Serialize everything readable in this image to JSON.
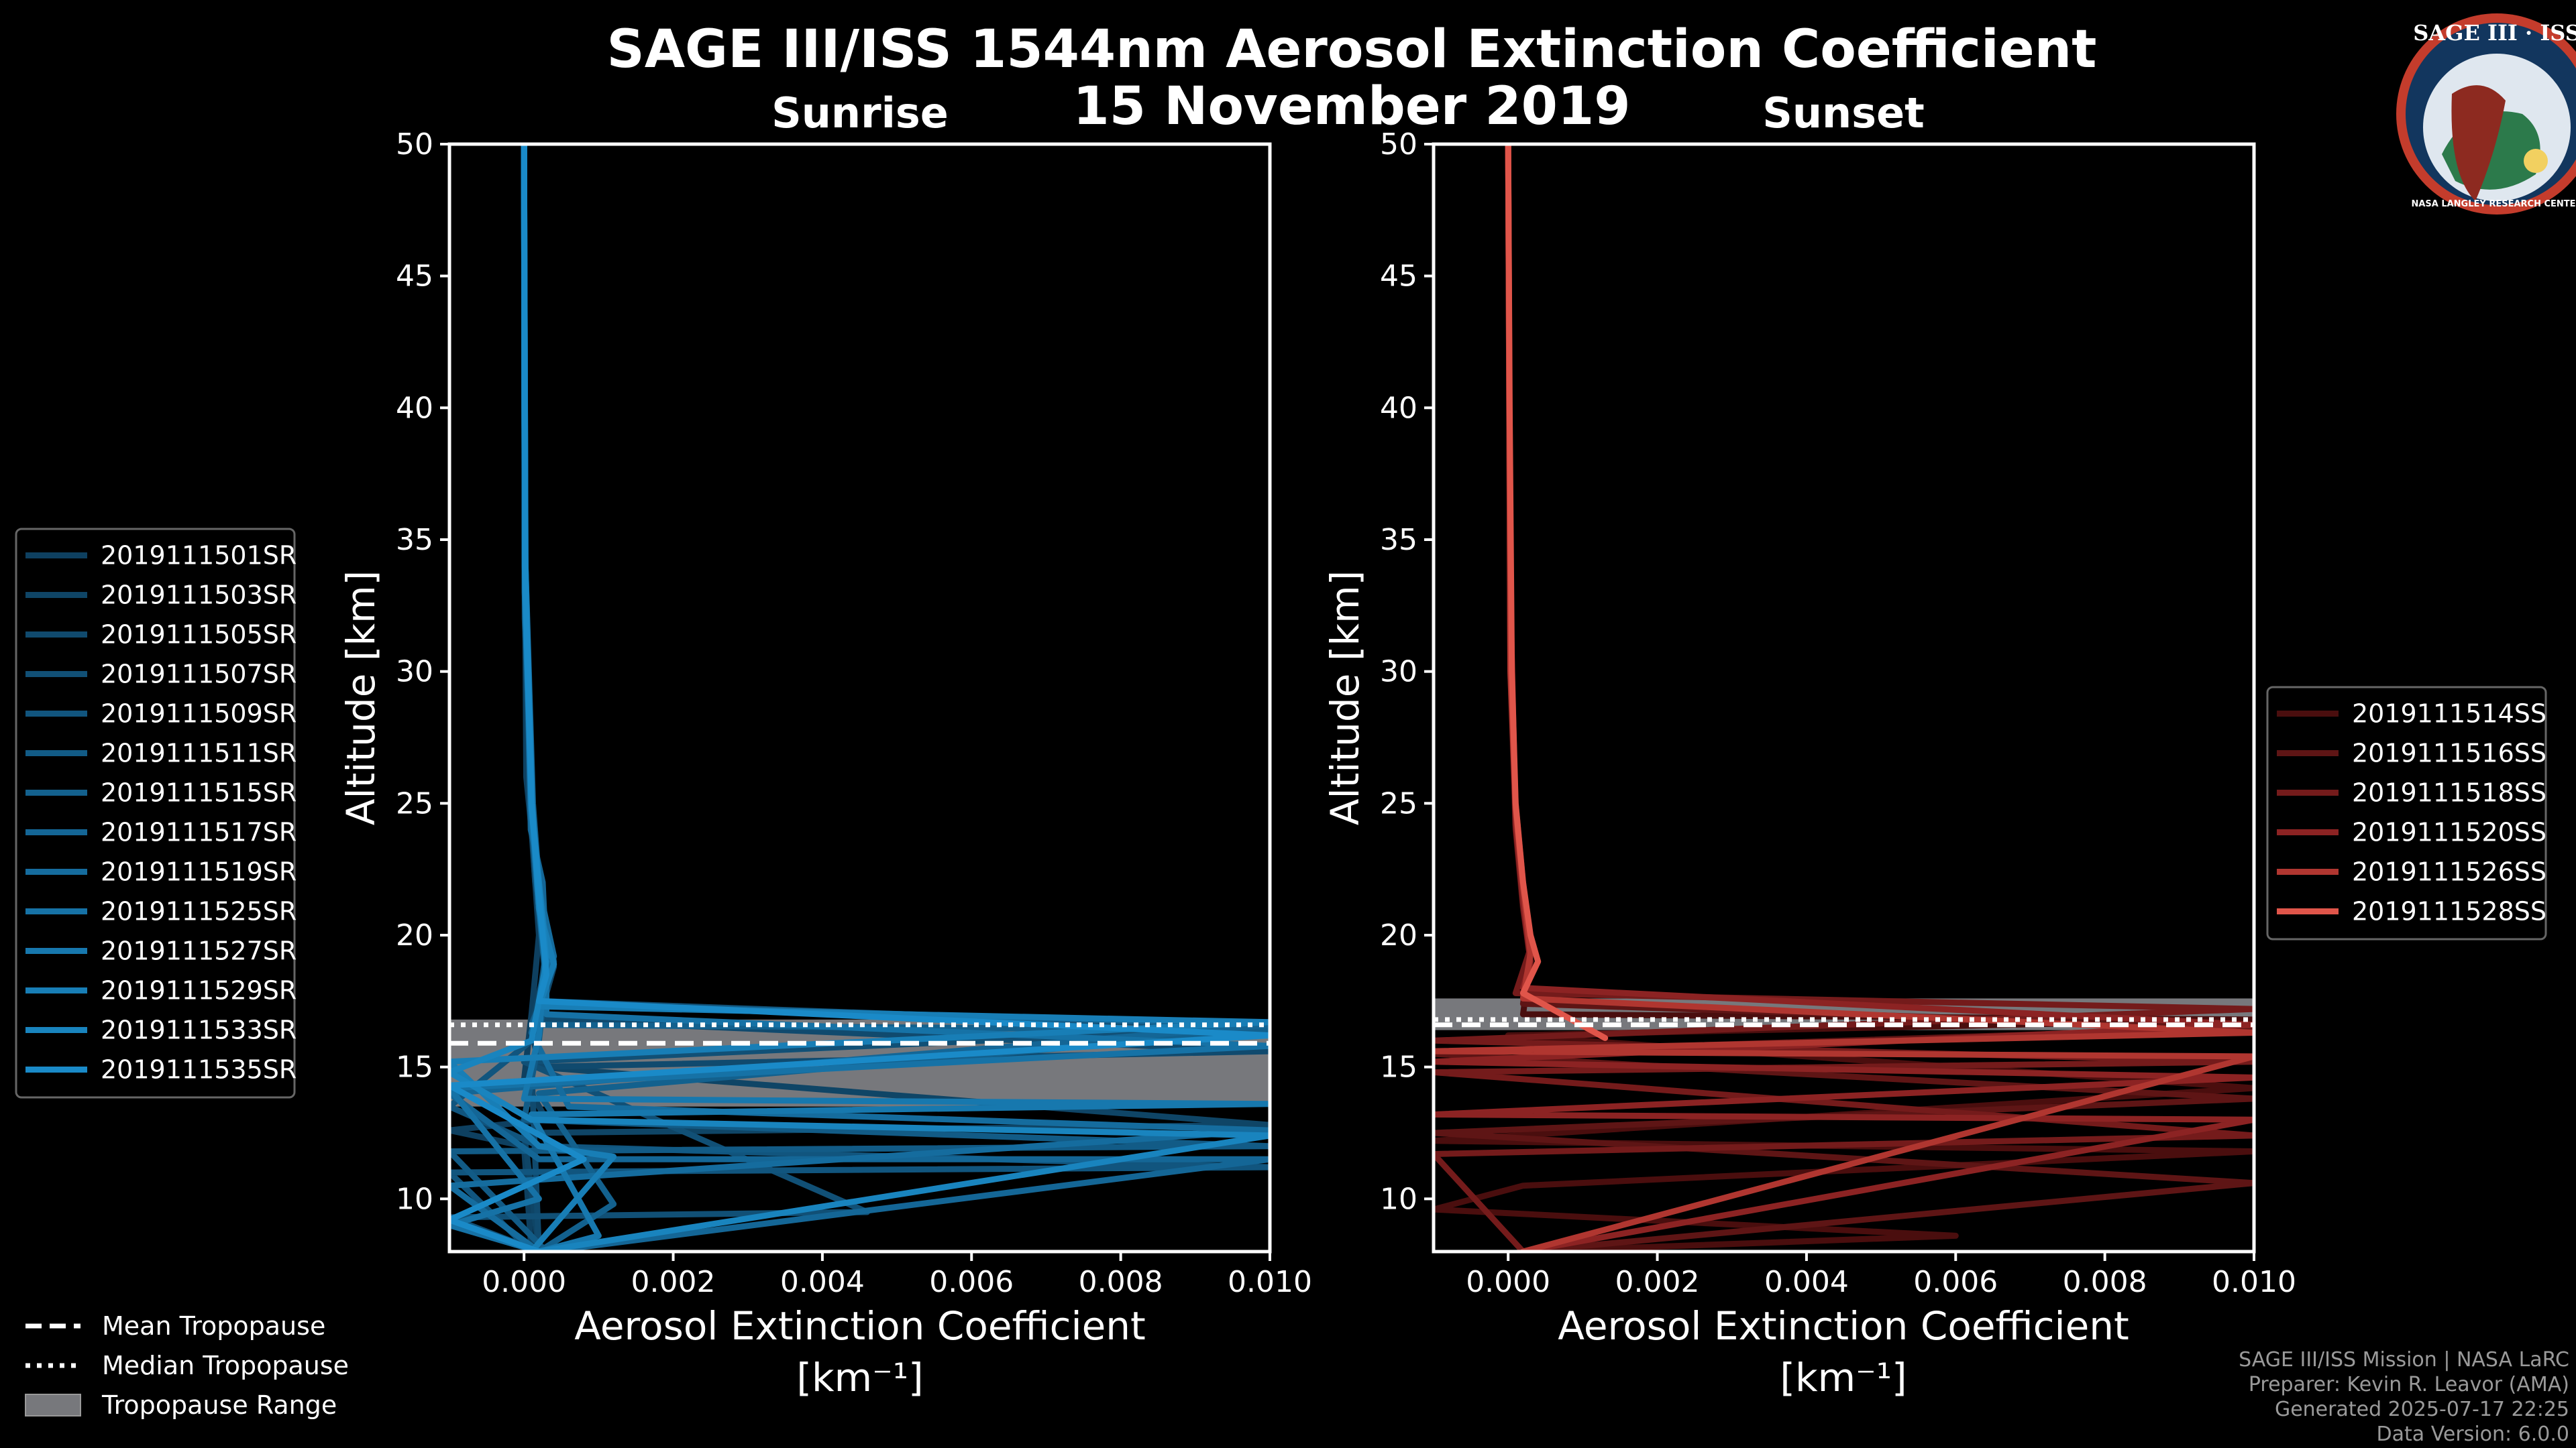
{
  "title_line1": "SAGE III/ISS 1544nm Aerosol Extinction Coefficient",
  "title_line2": "15 November 2019",
  "logo": {
    "text": "SAGE III · ISS",
    "ring_text": "NASA LANGLEY RESEARCH CENTER"
  },
  "credits": {
    "line1": "SAGE III/ISS Mission | NASA LaRC",
    "line2": "Preparer: Kevin R. Leavor (AMA)",
    "line3": "Generated 2025-07-17 22:25",
    "line4": "Data Version: 6.0.0"
  },
  "tropopause_legend": [
    {
      "label": "Mean Tropopause",
      "style": "dashed"
    },
    {
      "label": "Median Tropopause",
      "style": "dotted"
    },
    {
      "label": "Tropopause Range",
      "style": "fill"
    }
  ],
  "chart_data": [
    {
      "type": "line",
      "title": "Sunrise",
      "xlabel": "Aerosol Extinction Coefficient",
      "xunit": "[km⁻¹]",
      "ylabel": "Altitude [km]",
      "xlim": [
        -0.001,
        0.01
      ],
      "ylim": [
        8,
        50
      ],
      "xticks": [
        "0.000",
        "0.002",
        "0.004",
        "0.006",
        "0.008",
        "0.010"
      ],
      "yticks": [
        "10",
        "15",
        "20",
        "25",
        "30",
        "35",
        "40",
        "45",
        "50"
      ],
      "tropopause": {
        "mean": 15.9,
        "median": 16.6,
        "range": [
          13.5,
          16.8
        ]
      },
      "series": [
        {
          "name": "2019111501SR",
          "color": "#0e4060",
          "points": [
            [
              0.0,
              50
            ],
            [
              1e-05,
              35
            ],
            [
              3e-05,
              26
            ],
            [
              0.0001,
              24
            ],
            [
              0.0002,
              20
            ],
            [
              0.0001,
              17
            ],
            [
              0.0,
              14.5
            ],
            [
              0.0003,
              13
            ],
            [
              -0.001,
              12.6
            ],
            [
              0.0,
              12
            ],
            [
              0.0001,
              8
            ]
          ]
        },
        {
          "name": "2019111503SR",
          "color": "#0f4566",
          "points": [
            [
              0.0,
              50
            ],
            [
              2e-05,
              33
            ],
            [
              0.0001,
              25
            ],
            [
              0.0002,
              22
            ],
            [
              0.0003,
              19
            ],
            [
              0.0001,
              16.5
            ],
            [
              0.0002,
              15
            ],
            [
              0.01,
              12.8
            ],
            [
              0.0,
              12.5
            ],
            [
              0.0002,
              8
            ]
          ]
        },
        {
          "name": "2019111505SR",
          "color": "#104a6e",
          "points": [
            [
              0.0,
              50
            ],
            [
              1e-05,
              34
            ],
            [
              8e-05,
              25
            ],
            [
              0.00015,
              22
            ],
            [
              0.0004,
              18.8
            ],
            [
              0.0002,
              16.8
            ],
            [
              0.01,
              15.6
            ],
            [
              0.0001,
              15
            ],
            [
              0.0002,
              8
            ]
          ]
        },
        {
          "name": "2019111507SR",
          "color": "#115076",
          "points": [
            [
              0.0,
              50
            ],
            [
              1e-05,
              32
            ],
            [
              0.0001,
              24.5
            ],
            [
              0.0002,
              21
            ],
            [
              0.0003,
              19.5
            ],
            [
              0.0002,
              17.5
            ],
            [
              0.01,
              16.5
            ],
            [
              0.0,
              15.2
            ],
            [
              0.0046,
              9.5
            ],
            [
              -0.001,
              9.3
            ],
            [
              0.0002,
              8
            ]
          ]
        },
        {
          "name": "2019111509SR",
          "color": "#11557e",
          "points": [
            [
              0.0,
              50
            ],
            [
              1e-05,
              35
            ],
            [
              0.0001,
              25
            ],
            [
              0.0002,
              21.5
            ],
            [
              0.0004,
              19
            ],
            [
              0.0001,
              16
            ],
            [
              -0.001,
              13.5
            ],
            [
              0.0002,
              12
            ],
            [
              0.01,
              11.2
            ],
            [
              -0.001,
              11
            ],
            [
              0.0001,
              8
            ]
          ]
        },
        {
          "name": "2019111511SR",
          "color": "#125b86",
          "points": [
            [
              0.0,
              50
            ],
            [
              2e-05,
              34
            ],
            [
              0.00012,
              25
            ],
            [
              0.0002,
              22
            ],
            [
              0.0003,
              18.5
            ],
            [
              0.0002,
              16
            ],
            [
              0.0,
              13
            ],
            [
              0.01,
              12.0
            ],
            [
              -0.001,
              11.8
            ],
            [
              0.0003,
              8
            ]
          ]
        },
        {
          "name": "2019111515SR",
          "color": "#13618e",
          "points": [
            [
              0.0,
              50
            ],
            [
              1e-05,
              33
            ],
            [
              0.0001,
              24.8
            ],
            [
              0.0002,
              21
            ],
            [
              0.0003,
              18
            ],
            [
              0.0001,
              16.6
            ],
            [
              0.01,
              16.4
            ],
            [
              0.0002,
              14
            ],
            [
              0.0012,
              9.8
            ],
            [
              0.0002,
              8
            ]
          ]
        },
        {
          "name": "2019111517SR",
          "color": "#146696",
          "points": [
            [
              0.0,
              50
            ],
            [
              1e-05,
              35
            ],
            [
              9e-05,
              24
            ],
            [
              0.00025,
              22
            ],
            [
              0.0003,
              19
            ],
            [
              0.0002,
              17.4
            ],
            [
              0.01,
              16.6
            ],
            [
              -0.001,
              14
            ],
            [
              0.0002,
              11.5
            ],
            [
              0.01,
              11.5
            ],
            [
              0.0003,
              8
            ]
          ]
        },
        {
          "name": "2019111519SR",
          "color": "#156c9e",
          "points": [
            [
              0.0,
              50
            ],
            [
              2e-05,
              32
            ],
            [
              0.0001,
              25
            ],
            [
              0.0002,
              21.8
            ],
            [
              0.0004,
              19.2
            ],
            [
              0.0001,
              16.3
            ],
            [
              0.0006,
              13.5
            ],
            [
              0.01,
              12.6
            ],
            [
              -0.001,
              10.5
            ],
            [
              0.0002,
              8
            ]
          ]
        },
        {
          "name": "2019111525SR",
          "color": "#1672a6",
          "points": [
            [
              0.0,
              50
            ],
            [
              1e-05,
              34
            ],
            [
              0.0001,
              24.5
            ],
            [
              0.0002,
              21
            ],
            [
              0.0003,
              18.7
            ],
            [
              0.0003,
              17
            ],
            [
              0.01,
              15.8
            ],
            [
              -0.001,
              14.2
            ],
            [
              0.0002,
              10
            ],
            [
              -0.001,
              9.0
            ],
            [
              0.0002,
              8
            ]
          ]
        },
        {
          "name": "2019111527SR",
          "color": "#1778ae",
          "points": [
            [
              0.0,
              50
            ],
            [
              1e-05,
              33
            ],
            [
              0.0001,
              25
            ],
            [
              0.0002,
              22
            ],
            [
              0.0003,
              19.5
            ],
            [
              0.0002,
              16.2
            ],
            [
              0.0,
              13.8
            ],
            [
              0.01,
              13.6
            ],
            [
              0.0001,
              13.2
            ],
            [
              0.001,
              8.6
            ],
            [
              0.0002,
              8
            ]
          ]
        },
        {
          "name": "2019111529SR",
          "color": "#187eb6",
          "points": [
            [
              0.0,
              50
            ],
            [
              1e-05,
              35
            ],
            [
              0.00011,
              25
            ],
            [
              0.0002,
              21
            ],
            [
              0.0004,
              18.9
            ],
            [
              0.0002,
              17.3
            ],
            [
              0.01,
              16.7
            ],
            [
              -0.001,
              15.2
            ],
            [
              0.0002,
              12
            ],
            [
              0.0012,
              11.6
            ],
            [
              0.0001,
              8
            ]
          ]
        },
        {
          "name": "2019111533SR",
          "color": "#1984be",
          "points": [
            [
              0.0,
              50
            ],
            [
              2e-05,
              33
            ],
            [
              0.0001,
              24.8
            ],
            [
              0.0002,
              22
            ],
            [
              0.0003,
              19
            ],
            [
              0.0001,
              16
            ],
            [
              -0.001,
              14.8
            ],
            [
              0.0001,
              13
            ],
            [
              0.01,
              12.4
            ],
            [
              0.0002,
              8
            ]
          ]
        },
        {
          "name": "2019111535SR",
          "color": "#1a8ac8",
          "points": [
            [
              0.0,
              50
            ],
            [
              1e-05,
              34
            ],
            [
              0.0001,
              25
            ],
            [
              0.0002,
              21.5
            ],
            [
              0.0003,
              18.5
            ],
            [
              0.0002,
              17.5
            ],
            [
              0.01,
              16.2
            ],
            [
              -0.001,
              14.3
            ],
            [
              0.0008,
              11.5
            ],
            [
              -0.001,
              9.2
            ],
            [
              0.0002,
              8
            ]
          ]
        }
      ]
    },
    {
      "type": "line",
      "title": "Sunset",
      "xlabel": "Aerosol Extinction Coefficient",
      "xunit": "[km⁻¹]",
      "ylabel": "Altitude [km]",
      "xlim": [
        -0.001,
        0.01
      ],
      "ylim": [
        8,
        50
      ],
      "xticks": [
        "0.000",
        "0.002",
        "0.004",
        "0.006",
        "0.008",
        "0.010"
      ],
      "yticks": [
        "10",
        "15",
        "20",
        "25",
        "30",
        "35",
        "40",
        "45",
        "50"
      ],
      "tropopause": {
        "mean": 16.6,
        "median": 16.8,
        "range": [
          16.4,
          17.6
        ]
      },
      "series": [
        {
          "name": "2019111514SS",
          "color": "#4a0e0e",
          "points": [
            [
              0.0,
              50
            ],
            [
              3e-05,
              30
            ],
            [
              0.0001,
              24
            ],
            [
              0.0002,
              21
            ],
            [
              0.0003,
              19
            ],
            [
              0.0002,
              17
            ],
            [
              0.01,
              16.8
            ],
            [
              0.0,
              16.2
            ],
            [
              0.01,
              14.2
            ],
            [
              -0.001,
              12.2
            ],
            [
              0.01,
              11.8
            ],
            [
              0.0002,
              10.5
            ],
            [
              -0.001,
              9.6
            ],
            [
              0.006,
              8.6
            ],
            [
              0.0002,
              8
            ]
          ]
        },
        {
          "name": "2019111516SS",
          "color": "#5e1515",
          "points": [
            [
              0.0,
              50
            ],
            [
              3e-05,
              32
            ],
            [
              0.0001,
              24.5
            ],
            [
              0.0002,
              21.5
            ],
            [
              0.0003,
              19.2
            ],
            [
              0.0002,
              17.4
            ],
            [
              0.01,
              16.5
            ],
            [
              -0.001,
              15.5
            ],
            [
              0.01,
              13.8
            ],
            [
              -0.001,
              12.5
            ],
            [
              0.01,
              10.6
            ],
            [
              0.0002,
              8
            ]
          ]
        },
        {
          "name": "2019111518SS",
          "color": "#741b1b",
          "points": [
            [
              0.0,
              50
            ],
            [
              3e-05,
              31
            ],
            [
              0.0001,
              25
            ],
            [
              0.0002,
              22
            ],
            [
              0.0003,
              19.5
            ],
            [
              0.0001,
              17.8
            ],
            [
              0.01,
              17.2
            ],
            [
              -0.001,
              16
            ],
            [
              0.01,
              15.2
            ],
            [
              -0.001,
              14.8
            ],
            [
              0.01,
              12.4
            ],
            [
              -0.001,
              11.7
            ],
            [
              0.0002,
              8
            ]
          ]
        },
        {
          "name": "2019111520SS",
          "color": "#8c2323",
          "points": [
            [
              0.0,
              50
            ],
            [
              3e-05,
              33
            ],
            [
              0.0001,
              24.2
            ],
            [
              0.0002,
              21.2
            ],
            [
              0.0003,
              19
            ],
            [
              0.0002,
              18
            ],
            [
              0.01,
              16.6
            ],
            [
              -0.001,
              15.2
            ],
            [
              0.01,
              14.6
            ],
            [
              -0.001,
              13.2
            ],
            [
              0.01,
              13.0
            ],
            [
              0.0002,
              8
            ]
          ]
        },
        {
          "name": "2019111526SS",
          "color": "#b03630",
          "points": [
            [
              0.0,
              50
            ],
            [
              3e-05,
              30
            ],
            [
              0.0001,
              24.8
            ],
            [
              0.0002,
              21.8
            ],
            [
              0.0003,
              19.3
            ],
            [
              0.0002,
              17.6
            ],
            [
              0.01,
              16.3
            ],
            [
              -0.001,
              15.6
            ],
            [
              0.01,
              15.4
            ],
            [
              0.0002,
              8
            ]
          ]
        },
        {
          "name": "2019111528SS",
          "color": "#e0554a",
          "points": [
            [
              0.0,
              50
            ],
            [
              2e-05,
              40
            ],
            [
              5e-05,
              30
            ],
            [
              0.0001,
              25
            ],
            [
              0.0002,
              22
            ],
            [
              0.0003,
              20
            ],
            [
              0.0004,
              19
            ],
            [
              0.0002,
              17.8
            ],
            [
              0.0013,
              16.1
            ]
          ]
        }
      ]
    }
  ]
}
